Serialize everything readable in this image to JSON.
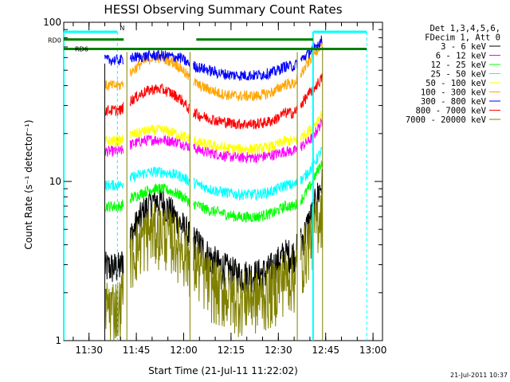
{
  "chart_data": {
    "type": "line",
    "title": "HESSI Observing Summary Count Rates",
    "ylabel": "Count Rate (s⁻¹ detector⁻¹)",
    "xlabel": "Start Time (21-Jul-11 11:22:02)",
    "yscale": "log",
    "ylim": [
      1,
      100
    ],
    "xlim": [
      "11:22",
      "13:03"
    ],
    "y_tick_labels": [
      "1",
      "10",
      "100"
    ],
    "x_tick_labels": [
      "11:30",
      "11:45",
      "12:00",
      "12:15",
      "12:30",
      "12:45",
      "13:00"
    ],
    "legend_header": [
      "Det 1,3,4,5,6,",
      "FDecim 1, Att 0"
    ],
    "legend_position": "right",
    "footer_date": "21-Jul-2011 10:37",
    "annotations": [
      "RD0",
      "RD6",
      "N"
    ],
    "series": [
      {
        "name": "3 - 6 keV",
        "color": "#000000",
        "x": [
          "11:35",
          "11:37",
          "11:40",
          "11:43",
          "11:47",
          "11:50",
          "11:53",
          "11:56",
          "11:59",
          "12:02",
          "12:05",
          "12:08",
          "12:11",
          "12:14",
          "12:17",
          "12:20",
          "12:23",
          "12:26",
          "12:29",
          "12:32",
          "12:35",
          "12:38",
          "12:41",
          "12:44"
        ],
        "y": [
          2.9,
          2.9,
          2.9,
          4.4,
          6.3,
          7.5,
          7.5,
          6.4,
          5.4,
          4.5,
          4.0,
          3.4,
          3.0,
          2.8,
          2.6,
          2.6,
          2.6,
          2.7,
          3.0,
          3.5,
          3.5,
          4.5,
          6.5,
          10
        ]
      },
      {
        "name": "6 - 12 keV",
        "color": "#ff00ff",
        "x": [
          "11:35",
          "11:37",
          "11:40",
          "11:43",
          "11:47",
          "11:50",
          "11:53",
          "11:56",
          "11:59",
          "12:02",
          "12:05",
          "12:08",
          "12:11",
          "12:14",
          "12:17",
          "12:20",
          "12:23",
          "12:26",
          "12:29",
          "12:32",
          "12:35",
          "12:38",
          "12:41",
          "12:44"
        ],
        "y": [
          15.5,
          15.5,
          15.5,
          17,
          18,
          18.3,
          18.3,
          18,
          17.5,
          16.5,
          15.8,
          15.2,
          14.8,
          14.4,
          14.2,
          14.2,
          14.2,
          14.4,
          14.8,
          15.5,
          15.5,
          17,
          19,
          24
        ]
      },
      {
        "name": "12 - 25 keV",
        "color": "#00ff00",
        "x": [
          "11:35",
          "11:37",
          "11:40",
          "11:43",
          "11:47",
          "11:50",
          "11:53",
          "11:56",
          "11:59",
          "12:02",
          "12:05",
          "12:08",
          "12:11",
          "12:14",
          "12:17",
          "12:20",
          "12:23",
          "12:26",
          "12:29",
          "12:32",
          "12:35",
          "12:38",
          "12:41",
          "12:44"
        ],
        "y": [
          7.0,
          7.0,
          7.0,
          7.8,
          8.5,
          9,
          9,
          8.7,
          8.2,
          7.4,
          7.0,
          6.6,
          6.4,
          6.2,
          6.0,
          6.0,
          6.0,
          6.2,
          6.4,
          7.0,
          7.0,
          8.0,
          10,
          13.5
        ]
      },
      {
        "name": "25 - 50 keV",
        "color": "#00ffff",
        "x": [
          "11:35",
          "11:37",
          "11:40",
          "11:43",
          "11:47",
          "11:50",
          "11:53",
          "11:56",
          "11:59",
          "12:02",
          "12:05",
          "12:08",
          "12:11",
          "12:14",
          "12:17",
          "12:20",
          "12:23",
          "12:26",
          "12:29",
          "12:32",
          "12:35",
          "12:38",
          "12:41",
          "12:44"
        ],
        "y": [
          9.5,
          9.5,
          9.5,
          10.5,
          11.2,
          11.5,
          11.5,
          11.2,
          10.8,
          10,
          9.5,
          9.0,
          8.7,
          8.5,
          8.3,
          8.3,
          8.3,
          8.5,
          8.8,
          9.5,
          9.5,
          10.5,
          12.5,
          16
        ]
      },
      {
        "name": "50 - 100 keV",
        "color": "#ffff00",
        "x": [
          "11:35",
          "11:37",
          "11:40",
          "11:43",
          "11:47",
          "11:50",
          "11:53",
          "11:56",
          "11:59",
          "12:02",
          "12:05",
          "12:08",
          "12:11",
          "12:14",
          "12:17",
          "12:20",
          "12:23",
          "12:26",
          "12:29",
          "12:32",
          "12:35",
          "12:38",
          "12:41",
          "12:44"
        ],
        "y": [
          18,
          18,
          18,
          19.5,
          20.5,
          21,
          21,
          20.5,
          19.5,
          18.5,
          17.5,
          17,
          16.5,
          16.2,
          16,
          16,
          16,
          16.3,
          16.8,
          18,
          18,
          19.5,
          22,
          27
        ]
      },
      {
        "name": "100 - 300 keV",
        "color": "#ffa500",
        "x": [
          "11:35",
          "11:37",
          "11:40",
          "11:43",
          "11:47",
          "11:50",
          "11:53",
          "11:56",
          "11:59",
          "12:02",
          "12:05",
          "12:08",
          "12:11",
          "12:14",
          "12:17",
          "12:20",
          "12:23",
          "12:26",
          "12:29",
          "12:32",
          "12:35",
          "12:38",
          "12:41",
          "12:44"
        ],
        "y": [
          40,
          40,
          40,
          48,
          56,
          60,
          60,
          57,
          52,
          44,
          40,
          38,
          36,
          35,
          34.5,
          34.5,
          34.5,
          35.5,
          37,
          41,
          41,
          50,
          62,
          75
        ]
      },
      {
        "name": "300 - 800 keV",
        "color": "#0000ff",
        "x": [
          "11:35",
          "11:37",
          "11:40",
          "11:43",
          "11:47",
          "11:50",
          "11:53",
          "11:56",
          "11:59",
          "12:02",
          "12:05",
          "12:08",
          "12:11",
          "12:14",
          "12:17",
          "12:20",
          "12:23",
          "12:26",
          "12:29",
          "12:32",
          "12:35",
          "12:38",
          "12:41",
          "12:44"
        ],
        "y": [
          58,
          58,
          58,
          60,
          61,
          62,
          62,
          61,
          60,
          54,
          52,
          50,
          48,
          47,
          46.5,
          46.5,
          46.5,
          47.5,
          49,
          53,
          53,
          60,
          68,
          78
        ]
      },
      {
        "name": "800 - 7000 keV",
        "color": "#ff0000",
        "x": [
          "11:35",
          "11:37",
          "11:40",
          "11:43",
          "11:47",
          "11:50",
          "11:53",
          "11:56",
          "11:59",
          "12:02",
          "12:05",
          "12:08",
          "12:11",
          "12:14",
          "12:17",
          "12:20",
          "12:23",
          "12:26",
          "12:29",
          "12:32",
          "12:35",
          "12:38",
          "12:41",
          "12:44"
        ],
        "y": [
          28,
          28,
          28,
          32,
          36,
          38,
          38,
          36,
          33,
          28,
          26,
          25,
          24,
          23.5,
          23,
          23,
          23,
          23.5,
          24.5,
          27,
          27,
          32,
          38,
          45
        ]
      },
      {
        "name": "7000 - 20000 keV",
        "color": "#808000",
        "x": [
          "11:35",
          "11:37",
          "11:40",
          "11:43",
          "11:47",
          "11:50",
          "11:53",
          "11:56",
          "11:59",
          "12:02",
          "12:05",
          "12:08",
          "12:11",
          "12:14",
          "12:17",
          "12:20",
          "12:23",
          "12:26",
          "12:29",
          "12:32",
          "12:35",
          "12:38",
          "12:41",
          "12:44"
        ],
        "y": [
          1.7,
          1.7,
          1.7,
          3.4,
          4.5,
          5.0,
          5.0,
          4.6,
          4.0,
          3.3,
          2.9,
          2.4,
          2.1,
          2.0,
          1.9,
          1.9,
          1.9,
          2.0,
          2.2,
          2.6,
          2.6,
          3.5,
          5.0,
          7.0
        ]
      }
    ],
    "top_series_y": 68
  }
}
